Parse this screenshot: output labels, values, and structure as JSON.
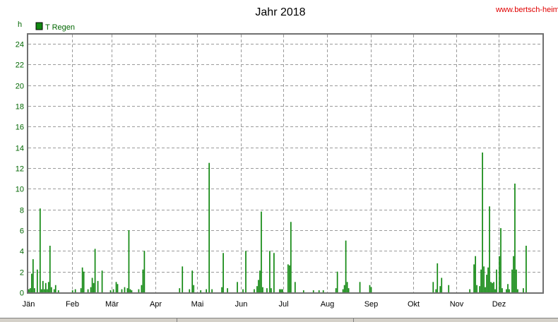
{
  "source_label": "www.bertsch-heim.at",
  "unit_label": "h",
  "chart_data": {
    "type": "bar",
    "title": "Jahr 2018",
    "xlabel": "",
    "ylabel": "h",
    "ylim": [
      0,
      25
    ],
    "yticks": [
      0,
      2,
      4,
      6,
      8,
      10,
      12,
      14,
      16,
      18,
      20,
      22,
      24
    ],
    "x_ticks": [
      "Jän",
      "Feb",
      "Mär",
      "Apr",
      "Mai",
      "Jun",
      "Jul",
      "Aug",
      "Sep",
      "Okt",
      "Nov",
      "Dez"
    ],
    "xlim_days": [
      1,
      365
    ],
    "grid": true,
    "legend": "top-left",
    "series": [
      {
        "name": "T Regen",
        "color": "#118811",
        "points": [
          {
            "x": 1,
            "y": 0.3
          },
          {
            "x": 2,
            "y": 0.4
          },
          {
            "x": 3,
            "y": 1.8
          },
          {
            "x": 4,
            "y": 3.2
          },
          {
            "x": 5,
            "y": 0.4
          },
          {
            "x": 7,
            "y": 2.2
          },
          {
            "x": 9,
            "y": 8.1
          },
          {
            "x": 10,
            "y": 0.3
          },
          {
            "x": 11,
            "y": 1.1
          },
          {
            "x": 12,
            "y": 0.3
          },
          {
            "x": 13,
            "y": 0.9
          },
          {
            "x": 14,
            "y": 0.3
          },
          {
            "x": 15,
            "y": 1.0
          },
          {
            "x": 16,
            "y": 4.5
          },
          {
            "x": 17,
            "y": 0.5
          },
          {
            "x": 19,
            "y": 0.3
          },
          {
            "x": 20,
            "y": 0.7
          },
          {
            "x": 22,
            "y": 0.2
          },
          {
            "x": 32,
            "y": 0.2
          },
          {
            "x": 34,
            "y": 0.3
          },
          {
            "x": 38,
            "y": 0.4
          },
          {
            "x": 39,
            "y": 2.4
          },
          {
            "x": 40,
            "y": 2.0
          },
          {
            "x": 43,
            "y": 0.3
          },
          {
            "x": 45,
            "y": 0.5
          },
          {
            "x": 46,
            "y": 1.4
          },
          {
            "x": 47,
            "y": 0.9
          },
          {
            "x": 48,
            "y": 4.2
          },
          {
            "x": 50,
            "y": 1.1
          },
          {
            "x": 53,
            "y": 2.1
          },
          {
            "x": 59,
            "y": 0.2
          },
          {
            "x": 61,
            "y": 0.3
          },
          {
            "x": 63,
            "y": 1.0
          },
          {
            "x": 64,
            "y": 0.8
          },
          {
            "x": 67,
            "y": 0.3
          },
          {
            "x": 69,
            "y": 0.5
          },
          {
            "x": 71,
            "y": 0.4
          },
          {
            "x": 72,
            "y": 6.0
          },
          {
            "x": 73,
            "y": 0.3
          },
          {
            "x": 74,
            "y": 0.2
          },
          {
            "x": 79,
            "y": 0.3
          },
          {
            "x": 81,
            "y": 0.7
          },
          {
            "x": 82,
            "y": 2.2
          },
          {
            "x": 83,
            "y": 4.0
          },
          {
            "x": 108,
            "y": 0.4
          },
          {
            "x": 110,
            "y": 2.5
          },
          {
            "x": 115,
            "y": 0.3
          },
          {
            "x": 117,
            "y": 2.1
          },
          {
            "x": 118,
            "y": 0.7
          },
          {
            "x": 123,
            "y": 0.2
          },
          {
            "x": 127,
            "y": 0.3
          },
          {
            "x": 129,
            "y": 12.5
          },
          {
            "x": 131,
            "y": 0.3
          },
          {
            "x": 138,
            "y": 0.5
          },
          {
            "x": 139,
            "y": 3.8
          },
          {
            "x": 142,
            "y": 0.4
          },
          {
            "x": 149,
            "y": 1.0
          },
          {
            "x": 153,
            "y": 0.3
          },
          {
            "x": 155,
            "y": 4.0
          },
          {
            "x": 161,
            "y": 0.3
          },
          {
            "x": 163,
            "y": 0.6
          },
          {
            "x": 164,
            "y": 1.2
          },
          {
            "x": 165,
            "y": 2.1
          },
          {
            "x": 166,
            "y": 7.8
          },
          {
            "x": 167,
            "y": 0.5
          },
          {
            "x": 170,
            "y": 0.4
          },
          {
            "x": 172,
            "y": 4.0
          },
          {
            "x": 173,
            "y": 0.4
          },
          {
            "x": 175,
            "y": 3.8
          },
          {
            "x": 179,
            "y": 0.3
          },
          {
            "x": 180,
            "y": 0.3
          },
          {
            "x": 181,
            "y": 0.3
          },
          {
            "x": 185,
            "y": 2.7
          },
          {
            "x": 186,
            "y": 2.6
          },
          {
            "x": 187,
            "y": 6.8
          },
          {
            "x": 190,
            "y": 1.0
          },
          {
            "x": 196,
            "y": 0.2
          },
          {
            "x": 203,
            "y": 0.2
          },
          {
            "x": 207,
            "y": 0.2
          },
          {
            "x": 210,
            "y": 0.2
          },
          {
            "x": 219,
            "y": 0.4
          },
          {
            "x": 220,
            "y": 2.0
          },
          {
            "x": 224,
            "y": 0.3
          },
          {
            "x": 225,
            "y": 0.7
          },
          {
            "x": 226,
            "y": 5.0
          },
          {
            "x": 227,
            "y": 1.0
          },
          {
            "x": 228,
            "y": 0.4
          },
          {
            "x": 236,
            "y": 1.0
          },
          {
            "x": 243,
            "y": 0.7
          },
          {
            "x": 244,
            "y": 0.5
          },
          {
            "x": 288,
            "y": 1.0
          },
          {
            "x": 290,
            "y": 0.3
          },
          {
            "x": 291,
            "y": 2.8
          },
          {
            "x": 293,
            "y": 0.6
          },
          {
            "x": 294,
            "y": 1.4
          },
          {
            "x": 299,
            "y": 0.7
          },
          {
            "x": 314,
            "y": 0.3
          },
          {
            "x": 317,
            "y": 2.7
          },
          {
            "x": 318,
            "y": 3.5
          },
          {
            "x": 319,
            "y": 0.7
          },
          {
            "x": 321,
            "y": 0.6
          },
          {
            "x": 322,
            "y": 2.2
          },
          {
            "x": 323,
            "y": 13.5
          },
          {
            "x": 324,
            "y": 2.5
          },
          {
            "x": 325,
            "y": 0.5
          },
          {
            "x": 326,
            "y": 1.7
          },
          {
            "x": 327,
            "y": 2.4
          },
          {
            "x": 328,
            "y": 8.3
          },
          {
            "x": 329,
            "y": 1.0
          },
          {
            "x": 330,
            "y": 0.9
          },
          {
            "x": 331,
            "y": 1.0
          },
          {
            "x": 332,
            "y": 0.3
          },
          {
            "x": 333,
            "y": 2.2
          },
          {
            "x": 335,
            "y": 3.5
          },
          {
            "x": 336,
            "y": 6.2
          },
          {
            "x": 337,
            "y": 0.4
          },
          {
            "x": 340,
            "y": 0.3
          },
          {
            "x": 341,
            "y": 0.8
          },
          {
            "x": 342,
            "y": 0.3
          },
          {
            "x": 344,
            "y": 2.2
          },
          {
            "x": 345,
            "y": 3.5
          },
          {
            "x": 346,
            "y": 10.5
          },
          {
            "x": 347,
            "y": 2.2
          },
          {
            "x": 348,
            "y": 0.3
          },
          {
            "x": 352,
            "y": 0.4
          },
          {
            "x": 354,
            "y": 4.5
          }
        ]
      }
    ]
  }
}
